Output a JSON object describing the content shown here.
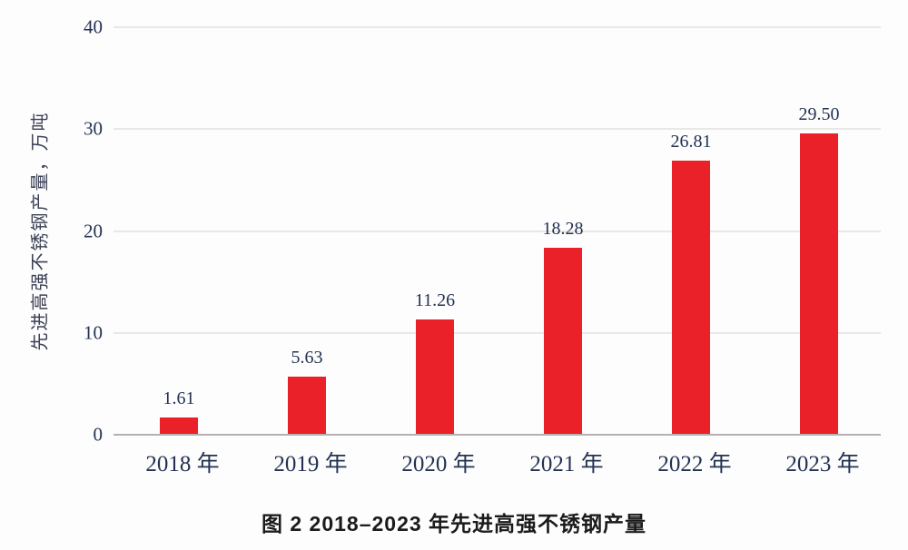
{
  "figure": {
    "caption": "图 2  2018–2023 年先进高强不锈钢产量"
  },
  "chart_data": {
    "type": "bar",
    "categories": [
      "2018 年",
      "2019 年",
      "2020 年",
      "2021 年",
      "2022 年",
      "2023 年"
    ],
    "values": [
      1.61,
      5.63,
      11.26,
      18.28,
      26.81,
      29.5
    ],
    "value_labels": [
      "1.61",
      "5.63",
      "11.26",
      "18.28",
      "26.81",
      "29.50"
    ],
    "title": "",
    "xlabel": "",
    "ylabel": "先进高强不锈钢产量，万吨",
    "y_ticks": [
      0,
      10,
      20,
      30,
      40
    ],
    "ylim": [
      0,
      40
    ],
    "grid": "horizontal-only",
    "legend": "none",
    "colors": {
      "bar": "#ea2128",
      "tick_text": "#233253",
      "gridline": "#e9e8e6",
      "axis_line": "#b3b2b0",
      "caption_text": "#1b1b1b",
      "background": "#fdfdfd"
    }
  }
}
